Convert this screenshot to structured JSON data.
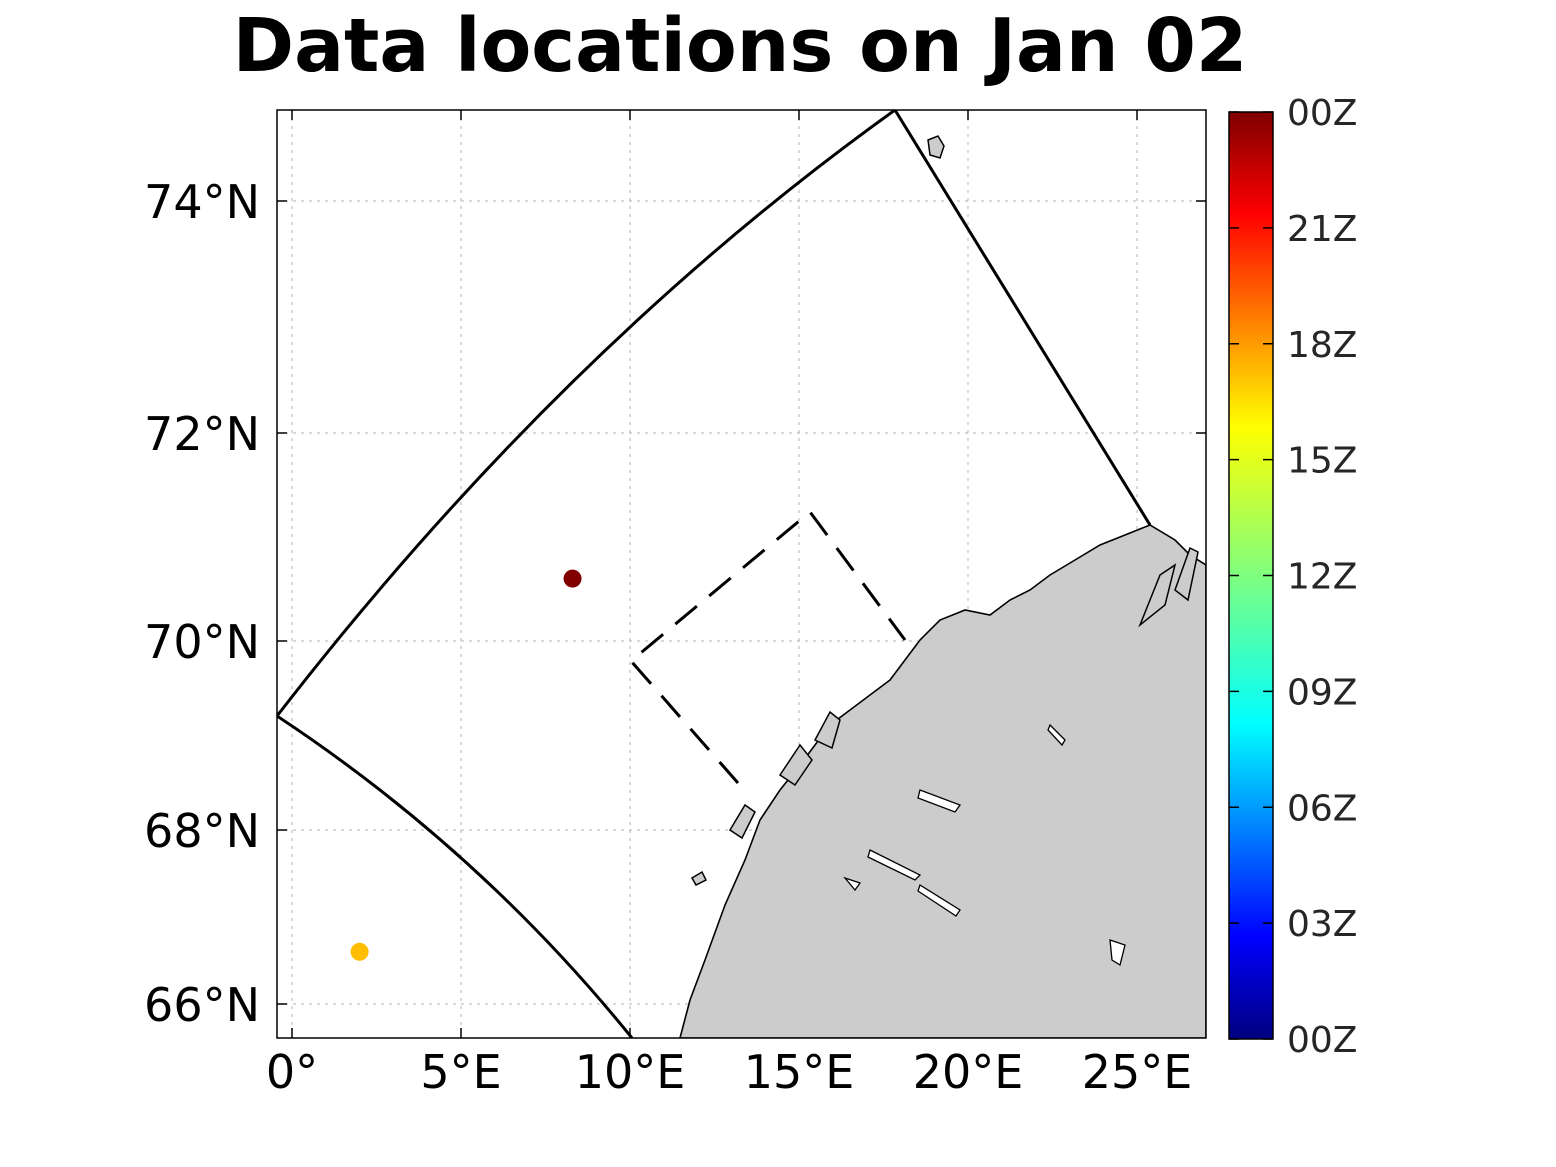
{
  "title": "Data locations on Jan 02",
  "chart_data": {
    "type": "scatter",
    "projection": "map",
    "xlabels": [
      "0°",
      "5°E",
      "10°E",
      "15°E",
      "20°E",
      "25°E"
    ],
    "xticks": [
      0,
      5,
      10,
      15,
      20,
      25
    ],
    "ylabels": [
      "66°N",
      "68°N",
      "70°N",
      "72°N",
      "74°N"
    ],
    "yticks": [
      66,
      68,
      70,
      72,
      74
    ],
    "grid": true,
    "land_color": "#cccccc",
    "points": [
      {
        "lon": 8.3,
        "lat": 70.6,
        "time": "00Z",
        "color": "#800000"
      },
      {
        "lon": 2.0,
        "lat": 66.6,
        "time": "16Z",
        "color": "#ffbf00"
      }
    ],
    "domain_outline": {
      "style": "solid",
      "corners": [
        {
          "lon": -0.4,
          "lat": 69.3
        },
        {
          "lon": 17.9,
          "lat": 74.9
        },
        {
          "lon": 25.2,
          "lat": 71.1
        },
        {
          "lon": 10.0,
          "lat": 65.6
        }
      ]
    },
    "inner_box": {
      "style": "dashed",
      "corners": [
        {
          "lon": 10.0,
          "lat": 69.8
        },
        {
          "lon": 15.3,
          "lat": 71.3
        },
        {
          "lon": 18.2,
          "lat": 69.9
        },
        {
          "lon": 13.2,
          "lat": 68.4
        }
      ]
    },
    "colorbar": {
      "labels": [
        "00Z",
        "03Z",
        "06Z",
        "09Z",
        "12Z",
        "15Z",
        "18Z",
        "21Z",
        "00Z"
      ],
      "colormap": "jet"
    }
  }
}
